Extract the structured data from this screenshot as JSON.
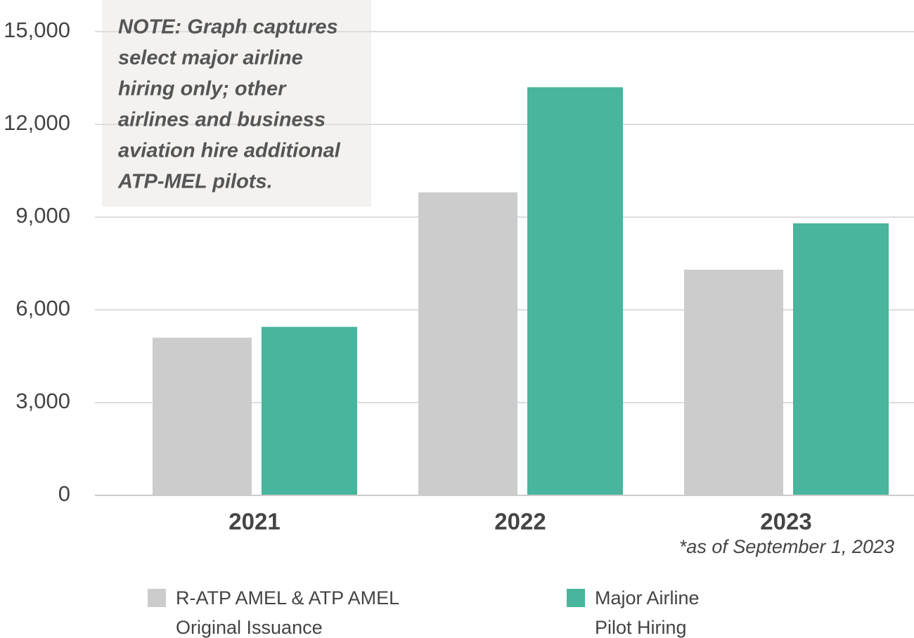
{
  "chart_data": {
    "type": "bar",
    "categories": [
      "2021",
      "2022",
      "2023"
    ],
    "series": [
      {
        "name": "R-ATP AMEL & ATP AMEL Original Issuance",
        "color": "#cccccc",
        "values": [
          5100,
          9800,
          7300
        ]
      },
      {
        "name": "Major Airline Pilot Hiring",
        "color": "#48b59c",
        "values": [
          5450,
          13200,
          8800
        ]
      }
    ],
    "ylim": [
      0,
      15000
    ],
    "yticks": [
      0,
      {
        "value": 3000,
        "label": "3,000"
      },
      {
        "value": 6000,
        "label": "6,000"
      },
      {
        "value": 9000,
        "label": "9,000"
      },
      {
        "value": 12000,
        "label": "12,000"
      },
      {
        "value": 15000,
        "label": "15,000"
      }
    ],
    "grid": true,
    "note": [
      "NOTE: Graph captures",
      "select major airline",
      "hiring only; other",
      "airlines and business",
      "aviation hire additional",
      "ATP-MEL pilots."
    ],
    "footnote": "*as of September 1, 2023"
  }
}
